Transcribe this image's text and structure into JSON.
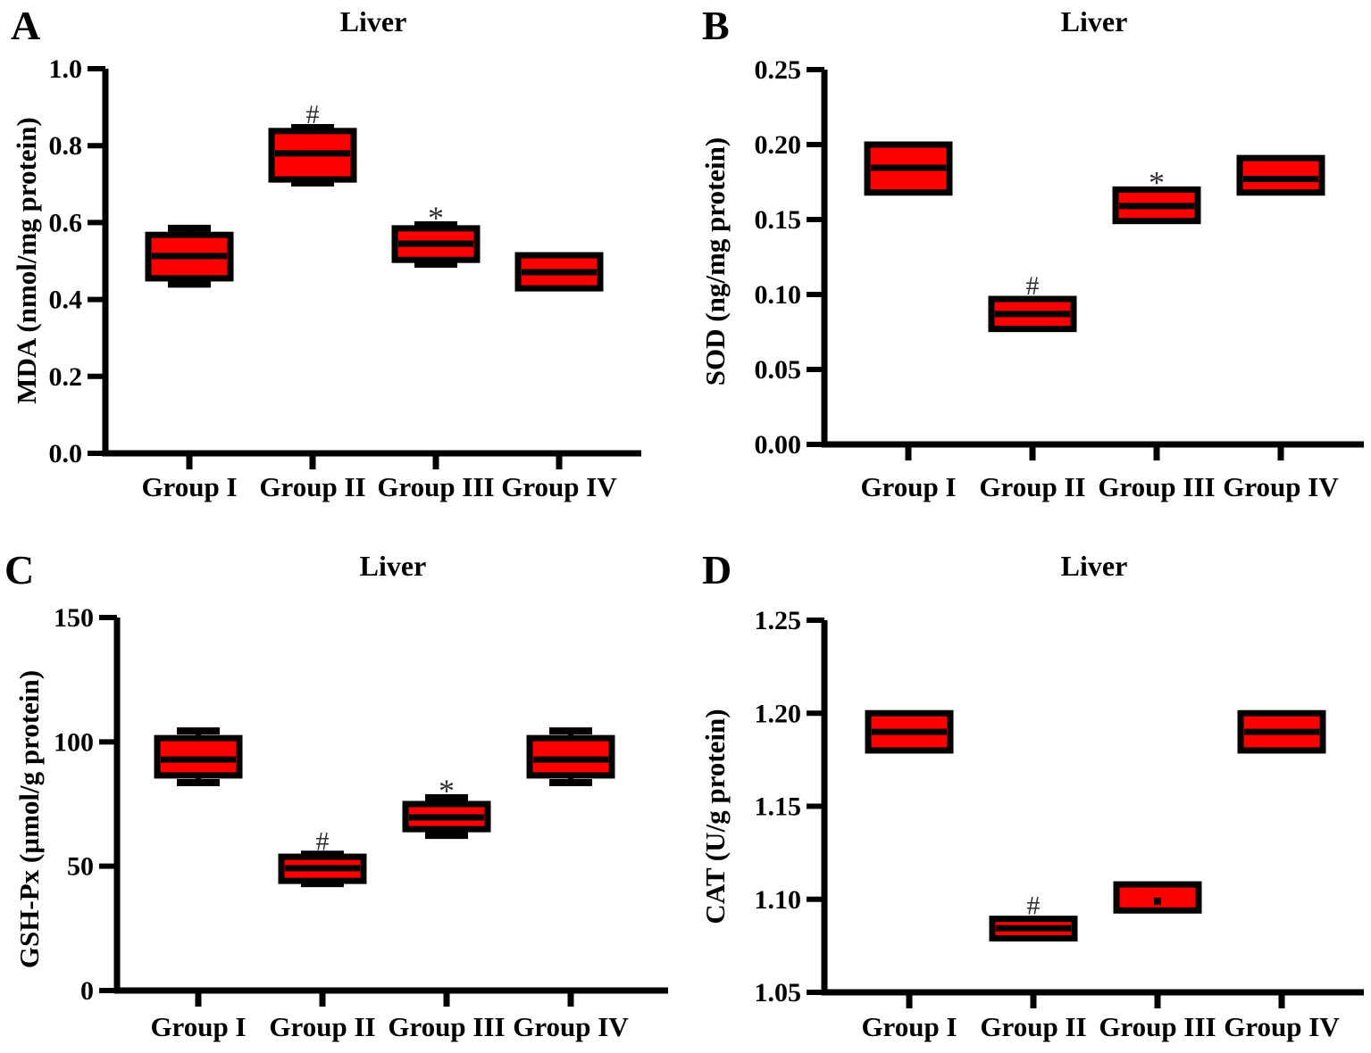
{
  "colors": {
    "box_fill": "#fe0000",
    "line": "#000000",
    "annotation": "#2e2e2e"
  },
  "chart_data": [
    {
      "type": "box",
      "panel": "A",
      "title": "Liver",
      "ylabel": "MDA (nmol/mg protein)",
      "ylim": [
        0.0,
        1.0
      ],
      "yticks": [
        "0.0",
        "0.2",
        "0.4",
        "0.6",
        "0.8",
        "1.0"
      ],
      "ytick_values": [
        0.0,
        0.2,
        0.4,
        0.6,
        0.8,
        1.0
      ],
      "categories": [
        "Group I",
        "Group II",
        "Group III",
        "Group IV"
      ],
      "boxes": [
        {
          "group": "Group I",
          "whisker_low": 0.44,
          "q1": 0.455,
          "median": 0.513,
          "q3": 0.568,
          "whisker_high": 0.585
        },
        {
          "group": "Group II",
          "whisker_low": 0.703,
          "q1": 0.712,
          "median": 0.78,
          "q3": 0.838,
          "whisker_high": 0.847,
          "annotation": "#"
        },
        {
          "group": "Group III",
          "whisker_low": 0.492,
          "q1": 0.503,
          "median": 0.545,
          "q3": 0.585,
          "whisker_high": 0.594,
          "annotation": "*"
        },
        {
          "group": "Group IV",
          "q1": 0.429,
          "median": 0.471,
          "q3": 0.515
        }
      ]
    },
    {
      "type": "box",
      "panel": "B",
      "title": "Liver",
      "ylabel": "SOD (ng/mg protein)",
      "ylim": [
        0.0,
        0.25
      ],
      "yticks": [
        "0.00",
        "0.05",
        "0.10",
        "0.15",
        "0.20",
        "0.25"
      ],
      "ytick_values": [
        0.0,
        0.05,
        0.1,
        0.15,
        0.2,
        0.25
      ],
      "categories": [
        "Group I",
        "Group II",
        "Group III",
        "Group IV"
      ],
      "boxes": [
        {
          "group": "Group I",
          "q1": 0.168,
          "median": 0.1845,
          "q3": 0.2
        },
        {
          "group": "Group II",
          "q1": 0.077,
          "median": 0.087,
          "q3": 0.097,
          "annotation": "#"
        },
        {
          "group": "Group III",
          "q1": 0.149,
          "median": 0.159,
          "q3": 0.17,
          "annotation": "*"
        },
        {
          "group": "Group IV",
          "q1": 0.168,
          "median": 0.177,
          "q3": 0.191
        }
      ]
    },
    {
      "type": "box",
      "panel": "C",
      "title": "Liver",
      "ylabel": "GSH-Px (µmol/g protein)",
      "ylim": [
        0,
        150
      ],
      "yticks": [
        "0",
        "50",
        "100",
        "150"
      ],
      "ytick_values": [
        0,
        50,
        100,
        150
      ],
      "categories": [
        "Group I",
        "Group II",
        "Group III",
        "Group IV"
      ],
      "boxes": [
        {
          "group": "Group I",
          "whisker_low": 83.6,
          "q1": 86.5,
          "median": 92.9,
          "q3": 101.5,
          "whisker_high": 104.4
        },
        {
          "group": "Group II",
          "whisker_low": 43.0,
          "q1": 44.1,
          "median": 49.2,
          "q3": 53.8,
          "whisker_high": 54.8,
          "annotation": "#"
        },
        {
          "group": "Group III",
          "whisker_low": 62.4,
          "q1": 64.9,
          "median": 69.6,
          "q3": 75.0,
          "whisker_high": 77.5,
          "annotation": "*"
        },
        {
          "group": "Group IV",
          "whisker_low": 83.6,
          "q1": 86.5,
          "median": 92.9,
          "q3": 101.5,
          "whisker_high": 104.4
        }
      ]
    },
    {
      "type": "box",
      "panel": "D",
      "title": "Liver",
      "ylabel": "CAT (U/g protein)",
      "ylim": [
        1.05,
        1.25
      ],
      "yticks": [
        "1.05",
        "1.10",
        "1.15",
        "1.20",
        "1.25"
      ],
      "ytick_values": [
        1.05,
        1.1,
        1.15,
        1.2,
        1.25
      ],
      "categories": [
        "Group I",
        "Group II",
        "Group III",
        "Group IV"
      ],
      "boxes": [
        {
          "group": "Group I",
          "q1": 1.18,
          "median": 1.19,
          "q3": 1.2
        },
        {
          "group": "Group II",
          "q1": 1.079,
          "median": 1.0845,
          "q3": 1.0895,
          "annotation": "#"
        },
        {
          "group": "Group III",
          "q1": 1.094,
          "median": 1.099,
          "q3": 1.108,
          "median_style": "dot"
        },
        {
          "group": "Group IV",
          "q1": 1.18,
          "median": 1.19,
          "q3": 1.2
        }
      ]
    }
  ]
}
